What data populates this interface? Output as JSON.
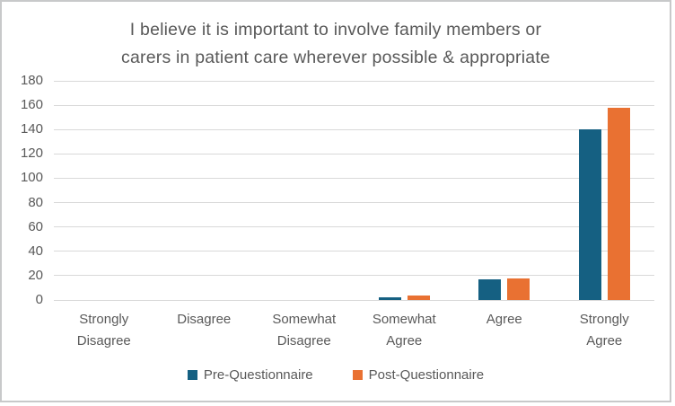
{
  "chart_data": {
    "type": "bar",
    "title": "I believe it is important to involve family members or carers in patient care wherever possible & appropriate",
    "title_lines": [
      "I believe it is important to involve family members or",
      "carers in patient care wherever possible & appropriate"
    ],
    "categories": [
      "Strongly Disagree",
      "Disagree",
      "Somewhat Disagree",
      "Somewhat Agree",
      "Agree",
      "Strongly Agree"
    ],
    "series": [
      {
        "name": "Pre-Questionnaire",
        "color": "#156082",
        "values": [
          0,
          0,
          0,
          2,
          17,
          140
        ]
      },
      {
        "name": "Post-Questionnaire",
        "color": "#E97132",
        "values": [
          0,
          0,
          0,
          4,
          18,
          158
        ]
      }
    ],
    "xlabel": "",
    "ylabel": "",
    "ylim": [
      0,
      180
    ],
    "yticks": [
      0,
      20,
      40,
      60,
      80,
      100,
      120,
      140,
      160,
      180
    ],
    "grid": true,
    "legend_position": "bottom",
    "colors": {
      "text": "#595959",
      "gridline": "#d9d9d9",
      "border": "#c8c9ca",
      "background": "#ffffff"
    }
  }
}
